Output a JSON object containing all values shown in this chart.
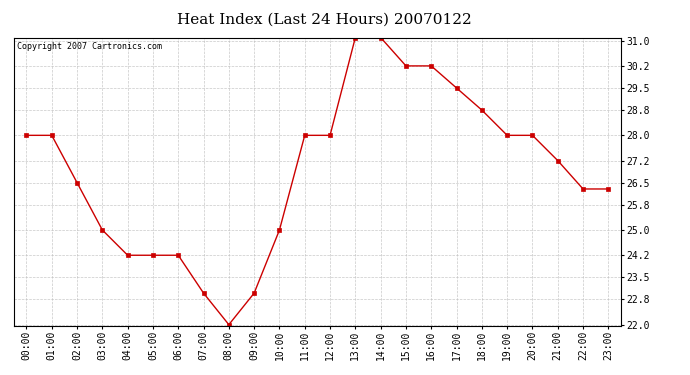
{
  "title": "Heat Index (Last 24 Hours) 20070122",
  "copyright": "Copyright 2007 Cartronics.com",
  "x_labels": [
    "00:00",
    "01:00",
    "02:00",
    "03:00",
    "04:00",
    "05:00",
    "06:00",
    "07:00",
    "08:00",
    "09:00",
    "10:00",
    "11:00",
    "12:00",
    "13:00",
    "14:00",
    "15:00",
    "16:00",
    "17:00",
    "18:00",
    "19:00",
    "20:00",
    "21:00",
    "22:00",
    "23:00"
  ],
  "y_values": [
    28.0,
    28.0,
    26.5,
    25.0,
    24.2,
    24.2,
    24.2,
    23.0,
    22.0,
    23.0,
    25.0,
    28.0,
    28.0,
    31.1,
    31.1,
    30.2,
    30.2,
    29.5,
    28.8,
    28.0,
    28.0,
    27.2,
    26.3,
    26.3
  ],
  "ylim": [
    22.0,
    31.0
  ],
  "yticks": [
    22.0,
    22.8,
    23.5,
    24.2,
    25.0,
    25.8,
    26.5,
    27.2,
    28.0,
    28.8,
    29.5,
    30.2,
    31.0
  ],
  "line_color": "#cc0000",
  "marker": "s",
  "marker_size": 2.5,
  "bg_color": "#ffffff",
  "plot_bg_color": "#ffffff",
  "grid_color": "#bbbbbb",
  "title_fontsize": 11,
  "copyright_fontsize": 6,
  "tick_fontsize": 7,
  "ytick_fontsize": 7
}
